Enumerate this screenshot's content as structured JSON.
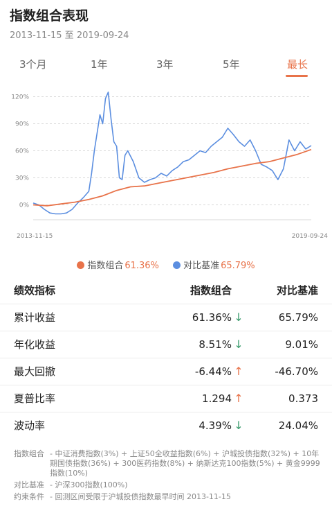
{
  "header": {
    "title": "指数组合表现",
    "date_range": "2013-11-15 至 2019-09-24"
  },
  "tabs": [
    {
      "label": "3个月",
      "active": false
    },
    {
      "label": "1年",
      "active": false
    },
    {
      "label": "3年",
      "active": false
    },
    {
      "label": "5年",
      "active": false
    },
    {
      "label": "最长",
      "active": true
    }
  ],
  "colors": {
    "portfolio": "#e8734a",
    "benchmark": "#5b8ee0",
    "accent": "#e8734a",
    "down_arrow": "#3a9b6c"
  },
  "chart_data": {
    "type": "line",
    "y_ticks": [
      "120%",
      "90%",
      "60%",
      "30%",
      "0%"
    ],
    "ylim": [
      -15,
      125
    ],
    "x_start_label": "2013-11-15",
    "x_end_label": "2019-09-24",
    "grid": true,
    "series": [
      {
        "name": "指数组合",
        "color": "#e8734a",
        "x": [
          0,
          0.05,
          0.1,
          0.15,
          0.2,
          0.25,
          0.3,
          0.35,
          0.4,
          0.45,
          0.5,
          0.55,
          0.6,
          0.65,
          0.7,
          0.75,
          0.8,
          0.85,
          0.9,
          0.95,
          1.0
        ],
        "y": [
          0,
          -1,
          1,
          3,
          6,
          10,
          16,
          20,
          21,
          24,
          27,
          30,
          33,
          36,
          40,
          43,
          46,
          48,
          52,
          56,
          61.36
        ]
      },
      {
        "name": "对比基准",
        "color": "#5b8ee0",
        "x": [
          0,
          0.02,
          0.04,
          0.06,
          0.08,
          0.1,
          0.12,
          0.14,
          0.16,
          0.18,
          0.2,
          0.21,
          0.22,
          0.24,
          0.25,
          0.26,
          0.27,
          0.28,
          0.29,
          0.3,
          0.31,
          0.32,
          0.33,
          0.34,
          0.36,
          0.38,
          0.4,
          0.42,
          0.44,
          0.46,
          0.48,
          0.5,
          0.52,
          0.54,
          0.56,
          0.58,
          0.6,
          0.62,
          0.64,
          0.66,
          0.68,
          0.7,
          0.72,
          0.74,
          0.76,
          0.78,
          0.8,
          0.82,
          0.84,
          0.86,
          0.88,
          0.9,
          0.92,
          0.94,
          0.96,
          0.98,
          1.0
        ],
        "y": [
          2,
          0,
          -5,
          -9,
          -10,
          -10,
          -9,
          -5,
          2,
          8,
          15,
          35,
          60,
          100,
          90,
          118,
          125,
          95,
          70,
          65,
          30,
          28,
          55,
          60,
          48,
          30,
          25,
          28,
          30,
          35,
          32,
          38,
          42,
          48,
          50,
          55,
          60,
          58,
          65,
          70,
          75,
          85,
          78,
          70,
          65,
          72,
          60,
          45,
          42,
          38,
          28,
          40,
          72,
          60,
          70,
          62,
          65.79
        ]
      }
    ]
  },
  "legend": [
    {
      "name": "指数组合",
      "value": "61.36%"
    },
    {
      "name": "对比基准",
      "value": "65.79%"
    }
  ],
  "table": {
    "headers": [
      "绩效指标",
      "指数组合",
      "对比基准"
    ],
    "rows": [
      {
        "metric": "累计收益",
        "portfolio": "61.36%",
        "arrow": "↓",
        "direction": "down",
        "benchmark": "65.79%"
      },
      {
        "metric": "年化收益",
        "portfolio": "8.51%",
        "arrow": "↓",
        "direction": "down",
        "benchmark": "9.01%"
      },
      {
        "metric": "最大回撤",
        "portfolio": "-6.44%",
        "arrow": "↑",
        "direction": "up",
        "benchmark": "-46.70%"
      },
      {
        "metric": "夏普比率",
        "portfolio": "1.294",
        "arrow": "↑",
        "direction": "up",
        "benchmark": "0.373"
      },
      {
        "metric": "波动率",
        "portfolio": "4.39%",
        "arrow": "↓",
        "direction": "down",
        "benchmark": "24.04%"
      }
    ]
  },
  "notes": [
    {
      "label": "指数组合",
      "text": "- 中证消费指数(3%) + 上证50全收益指数(6%) + 沪城投债指数(32%) + 10年期国债指数(36%) + 300医药指数(8%) + 纳斯达克100指数(5%) + 黄金9999指数(10%)"
    },
    {
      "label": "对比基准",
      "text": "- 沪深300指数(100%)"
    },
    {
      "label": "约束条件",
      "text": "- 回测区间受限于沪城投债指数最早时间 2013-11-15"
    }
  ]
}
